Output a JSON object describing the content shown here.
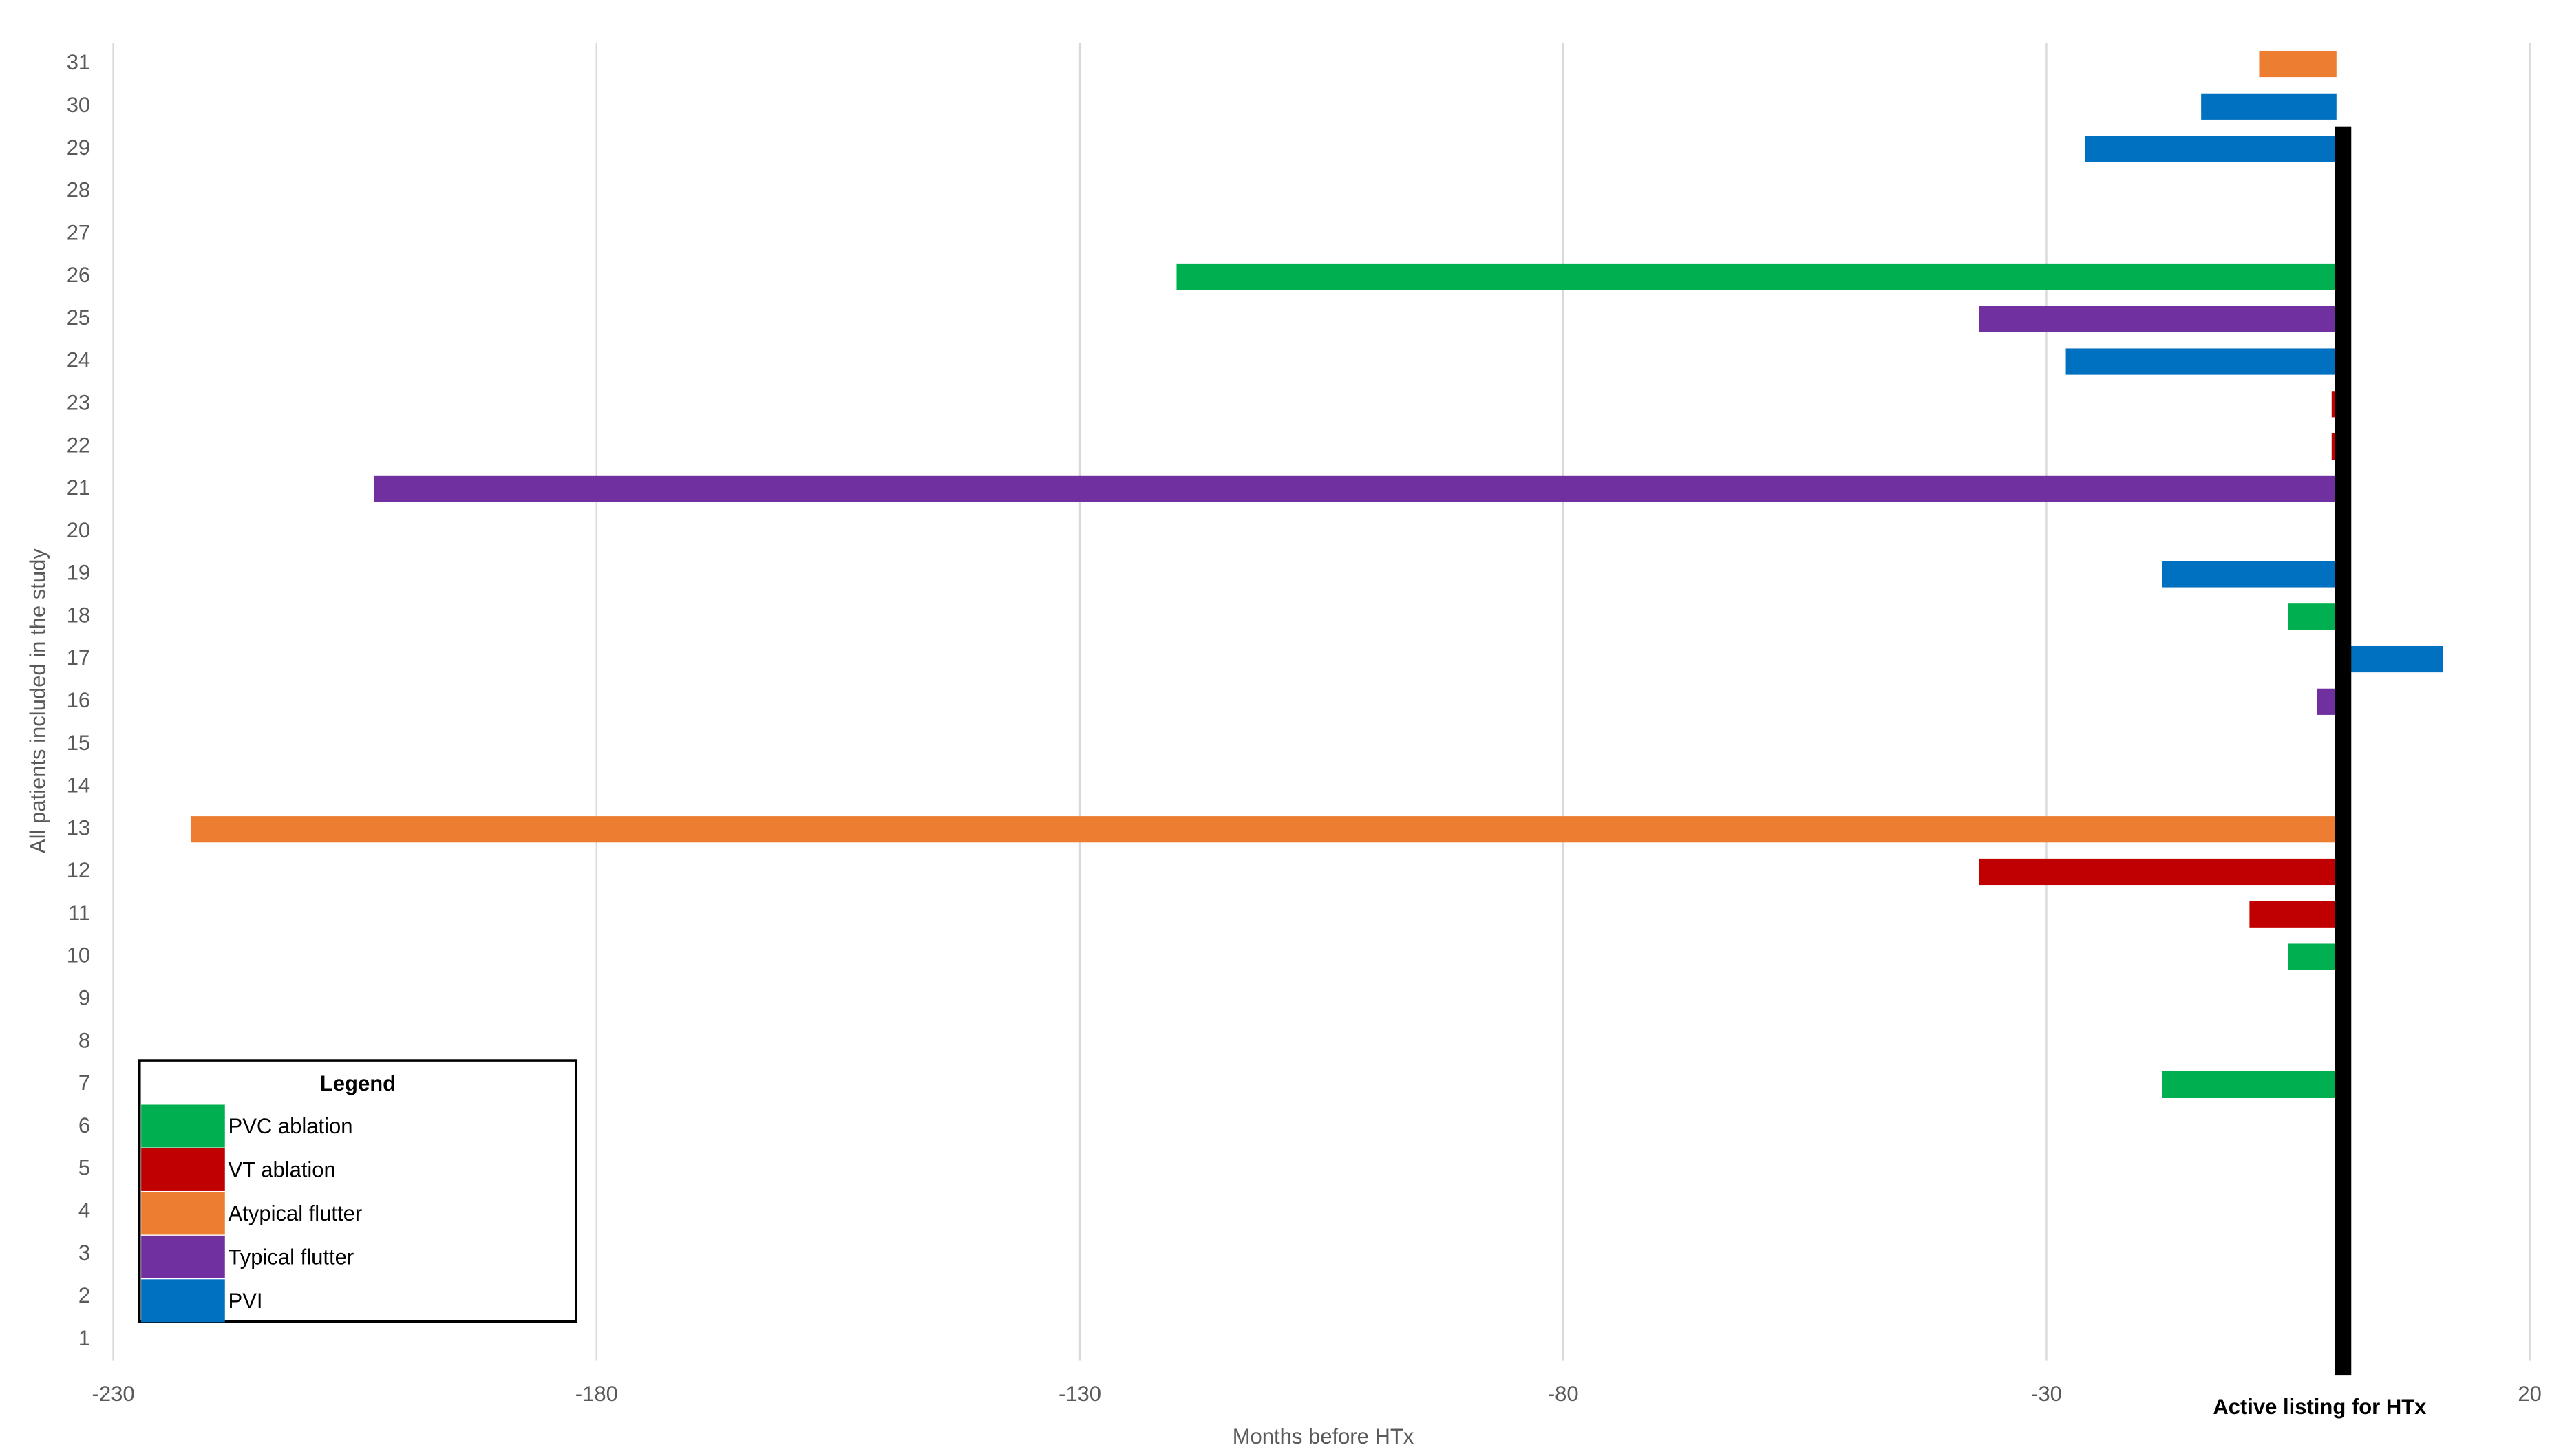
{
  "chart_data": {
    "type": "hbar",
    "x_label": "Months before HTx",
    "y_label": "All patients included in the study",
    "categories": [
      "1",
      "2",
      "3",
      "4",
      "5",
      "6",
      "7",
      "8",
      "9",
      "10",
      "11",
      "12",
      "13",
      "14",
      "15",
      "16",
      "17",
      "18",
      "19",
      "20",
      "21",
      "22",
      "23",
      "24",
      "25",
      "26",
      "27",
      "28",
      "29",
      "30",
      "31"
    ],
    "series": [
      {
        "name": "PVC ablation",
        "color": "#00b050",
        "values": [
          null,
          null,
          null,
          null,
          null,
          null,
          -18,
          null,
          null,
          -5,
          null,
          null,
          null,
          null,
          null,
          null,
          null,
          -5,
          null,
          null,
          null,
          null,
          null,
          null,
          null,
          -120,
          null,
          null,
          null,
          null,
          null
        ]
      },
      {
        "name": "VT ablation",
        "color": "#c00000",
        "values": [
          null,
          null,
          null,
          null,
          null,
          null,
          null,
          null,
          null,
          null,
          -9,
          -37,
          null,
          null,
          null,
          null,
          null,
          null,
          null,
          null,
          null,
          -0.5,
          -0.5,
          null,
          null,
          null,
          null,
          null,
          null,
          null,
          null
        ]
      },
      {
        "name": "Atypical flutter",
        "color": "#ed7d31",
        "values": [
          null,
          null,
          null,
          null,
          null,
          null,
          null,
          null,
          null,
          null,
          null,
          null,
          -222,
          null,
          null,
          null,
          null,
          null,
          null,
          null,
          null,
          null,
          null,
          null,
          null,
          null,
          null,
          null,
          null,
          null,
          -8
        ]
      },
      {
        "name": "Typical flutter",
        "color": "#7030a0",
        "values": [
          null,
          null,
          null,
          null,
          null,
          null,
          null,
          null,
          null,
          null,
          null,
          null,
          null,
          null,
          null,
          -2,
          null,
          null,
          null,
          null,
          -203,
          null,
          null,
          null,
          -37,
          null,
          null,
          null,
          null,
          null,
          null
        ]
      },
      {
        "name": "PVI",
        "color": "#0070c0",
        "values": [
          null,
          null,
          null,
          null,
          null,
          null,
          null,
          null,
          null,
          null,
          null,
          null,
          null,
          null,
          null,
          null,
          11,
          null,
          -18,
          null,
          null,
          null,
          null,
          -28,
          null,
          null,
          null,
          null,
          -26,
          -14,
          null
        ]
      }
    ],
    "xlim": [
      -230,
      20
    ],
    "xticks": [
      -230,
      -180,
      -130,
      -80,
      -30,
      20
    ],
    "grid": true,
    "legend": {
      "title": "Legend",
      "position": "lower left"
    },
    "reference_line": {
      "value": 0,
      "label": "Active listing for HTx",
      "color": "#000000"
    }
  }
}
